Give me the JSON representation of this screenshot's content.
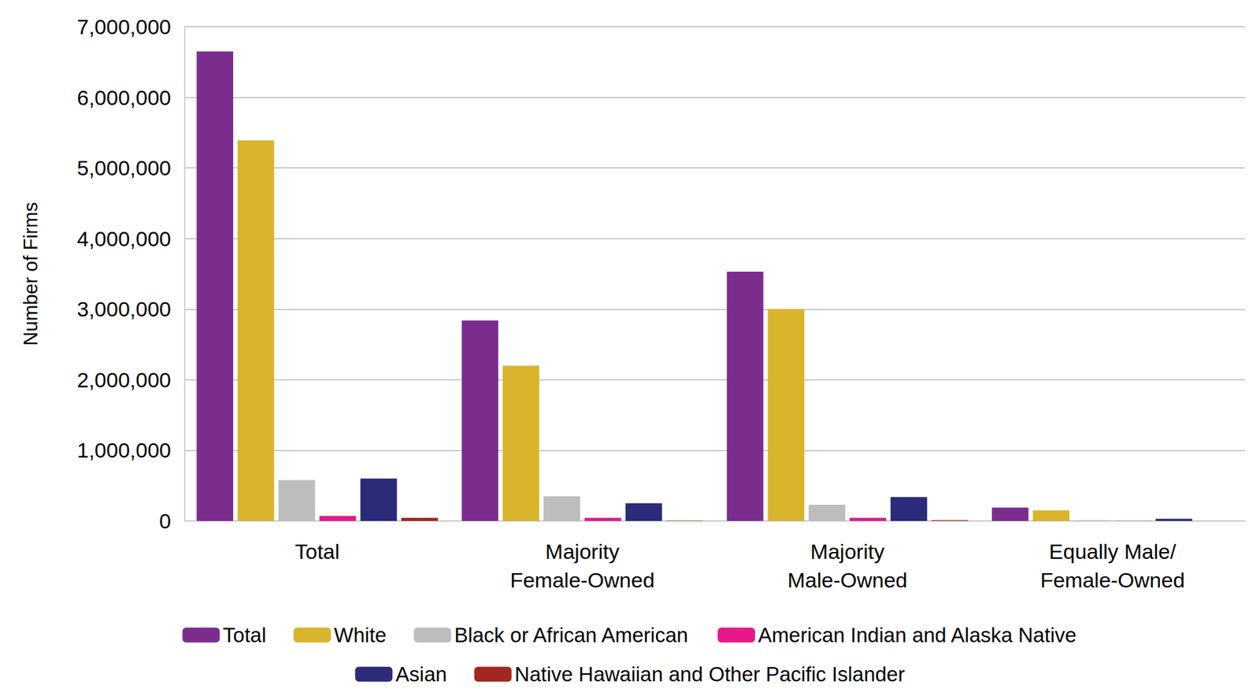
{
  "chart_data": {
    "type": "bar",
    "y_label": "Number of Firms",
    "categories": [
      "Total",
      "Majority\nFemale-Owned",
      "Majority\nMale-Owned",
      "Equally Male/\nFemale-Owned"
    ],
    "series": [
      {
        "name": "Total",
        "color": "#7b2d8e",
        "values": [
          6650000,
          2840000,
          3530000,
          190000
        ]
      },
      {
        "name": "White",
        "color": "#d9b52d",
        "values": [
          5390000,
          2200000,
          3000000,
          150000
        ]
      },
      {
        "name": "Black or African American",
        "color": "#bdbdbd",
        "values": [
          580000,
          350000,
          230000,
          10000
        ]
      },
      {
        "name": "American Indian and Alaska Native",
        "color": "#e5198a",
        "values": [
          70000,
          45000,
          45000,
          3000
        ]
      },
      {
        "name": "Asian",
        "color": "#2b2b7a",
        "values": [
          600000,
          250000,
          340000,
          30000
        ]
      },
      {
        "name": "Native Hawaiian and Other Pacific Islander",
        "color": "#a0281e",
        "values": [
          45000,
          5000,
          10000,
          1000
        ]
      }
    ],
    "ylim": [
      0,
      7000000
    ],
    "yticks": [
      0,
      {
        "value": 1000000,
        "label": "1,000,000"
      },
      {
        "value": 2000000,
        "label": "2,000,000"
      },
      {
        "value": 3000000,
        "label": "3,000,000"
      },
      {
        "value": 4000000,
        "label": "4,000,000"
      },
      {
        "value": 5000000,
        "label": "5,000,000"
      },
      {
        "value": 6000000,
        "label": "6,000,000"
      },
      {
        "value": 7000000,
        "label": "7,000,000"
      }
    ],
    "grid": true,
    "legend": "bottom"
  }
}
